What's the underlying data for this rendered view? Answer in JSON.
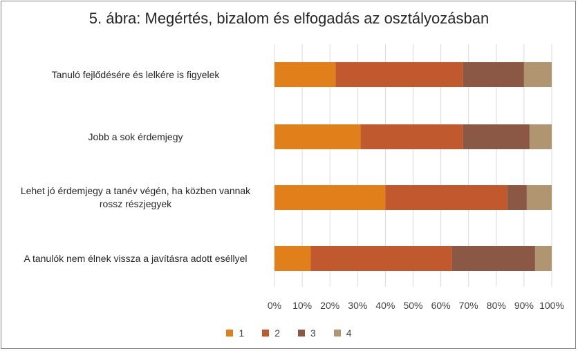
{
  "chart_data": {
    "type": "bar",
    "orientation": "horizontal",
    "stacked": "percent",
    "title": "5. ábra:  Megértés, bizalom és elfogadás az osztályozásban",
    "categories": [
      [
        "Tanuló fejlődésére és lelkére is figyelek"
      ],
      [
        "Jobb a sok érdemjegy"
      ],
      [
        "Lehet jó érdemjegy a tanév végén, ha közben vannak",
        "rossz részjegyek"
      ],
      [
        "A tanulók nem élnek vissza a javításra adott eséllyel"
      ]
    ],
    "series": [
      {
        "name": "1",
        "color": "#e1801b",
        "values": [
          22,
          31,
          40,
          13
        ]
      },
      {
        "name": "2",
        "color": "#c05a2e",
        "values": [
          46,
          37,
          44,
          51
        ]
      },
      {
        "name": "3",
        "color": "#8b5846",
        "values": [
          22,
          24,
          7,
          30
        ]
      },
      {
        "name": "4",
        "color": "#b09670",
        "values": [
          10,
          8,
          9,
          6
        ]
      }
    ],
    "xlim": [
      0,
      100
    ],
    "xticks": [
      "0%",
      "10%",
      "20%",
      "30%",
      "40%",
      "50%",
      "60%",
      "70%",
      "80%",
      "90%",
      "100%"
    ],
    "grid": "vertical",
    "legend_position": "bottom"
  }
}
